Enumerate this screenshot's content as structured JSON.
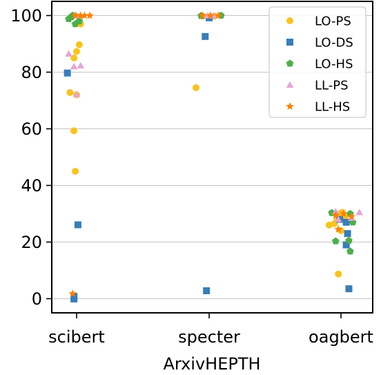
{
  "chart_data": {
    "type": "scatter",
    "title": "",
    "xlabel": "ArxivHEPTH",
    "ylabel": "",
    "categories": [
      "scibert",
      "specter",
      "oagbert"
    ],
    "ylim": [
      -5,
      105
    ],
    "yticks": [
      0,
      20,
      40,
      60,
      80,
      100
    ],
    "grid": "horizontal",
    "legend_position": "top-right",
    "series": [
      {
        "name": "LO-PS",
        "marker": "circle",
        "color": "#f9c31d",
        "points": [
          {
            "cat": 0,
            "jitter": 0.02,
            "y": 99.5
          },
          {
            "cat": 0,
            "jitter": 0.03,
            "y": 97
          },
          {
            "cat": 0,
            "jitter": 0.02,
            "y": 89.7
          },
          {
            "cat": 0,
            "jitter": 0.0,
            "y": 87.3
          },
          {
            "cat": 0,
            "jitter": -0.02,
            "y": 85
          },
          {
            "cat": 0,
            "jitter": -0.05,
            "y": 72.8
          },
          {
            "cat": 0,
            "jitter": 0.0,
            "y": 72
          },
          {
            "cat": 0,
            "jitter": -0.02,
            "y": 59.3
          },
          {
            "cat": 0,
            "jitter": -0.01,
            "y": 45
          },
          {
            "cat": 1,
            "jitter": -0.1,
            "y": 74.5
          },
          {
            "cat": 1,
            "jitter": -0.05,
            "y": 99.8
          },
          {
            "cat": 1,
            "jitter": 0.0,
            "y": 99.5
          },
          {
            "cat": 1,
            "jitter": 0.04,
            "y": 99.8
          },
          {
            "cat": 2,
            "jitter": -0.09,
            "y": 26
          },
          {
            "cat": 2,
            "jitter": -0.05,
            "y": 26.5
          },
          {
            "cat": 2,
            "jitter": -0.01,
            "y": 30
          },
          {
            "cat": 2,
            "jitter": 0.01,
            "y": 30.5
          },
          {
            "cat": 2,
            "jitter": 0.03,
            "y": 29
          },
          {
            "cat": 2,
            "jitter": -0.03,
            "y": 28
          },
          {
            "cat": 2,
            "jitter": 0.0,
            "y": 24
          },
          {
            "cat": 2,
            "jitter": -0.02,
            "y": 8.7
          }
        ]
      },
      {
        "name": "LO-DS",
        "marker": "square",
        "color": "#377eb8",
        "points": [
          {
            "cat": 0,
            "jitter": -0.07,
            "y": 79.7
          },
          {
            "cat": 0,
            "jitter": 0.01,
            "y": 26.1
          },
          {
            "cat": 0,
            "jitter": -0.02,
            "y": 0.8
          },
          {
            "cat": 0,
            "jitter": -0.02,
            "y": -0.1
          },
          {
            "cat": 1,
            "jitter": 0.0,
            "y": 99.2
          },
          {
            "cat": 1,
            "jitter": -0.03,
            "y": 92.6
          },
          {
            "cat": 1,
            "jitter": -0.02,
            "y": 2.8
          },
          {
            "cat": 2,
            "jitter": -0.01,
            "y": 28
          },
          {
            "cat": 2,
            "jitter": 0.04,
            "y": 27
          },
          {
            "cat": 2,
            "jitter": 0.05,
            "y": 23
          },
          {
            "cat": 2,
            "jitter": 0.04,
            "y": 19
          },
          {
            "cat": 2,
            "jitter": 0.06,
            "y": 3.5
          }
        ]
      },
      {
        "name": "LO-HS",
        "marker": "pentagon",
        "color": "#4daf4a",
        "points": [
          {
            "cat": 0,
            "jitter": -0.06,
            "y": 98.8
          },
          {
            "cat": 0,
            "jitter": -0.03,
            "y": 100
          },
          {
            "cat": 0,
            "jitter": -0.01,
            "y": 97
          },
          {
            "cat": 0,
            "jitter": 0.02,
            "y": 98
          },
          {
            "cat": 0,
            "jitter": -0.04,
            "y": 99.5
          },
          {
            "cat": 1,
            "jitter": -0.06,
            "y": 99.9
          },
          {
            "cat": 1,
            "jitter": 0.09,
            "y": 100
          },
          {
            "cat": 2,
            "jitter": -0.07,
            "y": 30.3
          },
          {
            "cat": 2,
            "jitter": 0.07,
            "y": 30
          },
          {
            "cat": 2,
            "jitter": 0.09,
            "y": 27
          },
          {
            "cat": 2,
            "jitter": -0.04,
            "y": 20.3
          },
          {
            "cat": 2,
            "jitter": 0.06,
            "y": 20.5
          },
          {
            "cat": 2,
            "jitter": 0.07,
            "y": 16.7
          }
        ]
      },
      {
        "name": "LL-PS",
        "marker": "triangle",
        "color": "#e7a4d7",
        "points": [
          {
            "cat": 0,
            "jitter": -0.06,
            "y": 86.5
          },
          {
            "cat": 0,
            "jitter": -0.02,
            "y": 82
          },
          {
            "cat": 0,
            "jitter": 0.03,
            "y": 82.3
          },
          {
            "cat": 0,
            "jitter": 0.0,
            "y": 72.2
          },
          {
            "cat": 0,
            "jitter": 0.0,
            "y": 100
          },
          {
            "cat": 1,
            "jitter": -0.01,
            "y": 100
          },
          {
            "cat": 1,
            "jitter": 0.03,
            "y": 100
          },
          {
            "cat": 2,
            "jitter": -0.04,
            "y": 30.8
          },
          {
            "cat": 2,
            "jitter": -0.02,
            "y": 28
          },
          {
            "cat": 2,
            "jitter": 0.08,
            "y": 28.5
          },
          {
            "cat": 2,
            "jitter": 0.14,
            "y": 30.5
          }
        ]
      },
      {
        "name": "LL-HS",
        "marker": "star",
        "color": "#ff7f00",
        "points": [
          {
            "cat": 0,
            "jitter": -0.01,
            "y": 100
          },
          {
            "cat": 0,
            "jitter": 0.03,
            "y": 100
          },
          {
            "cat": 0,
            "jitter": 0.06,
            "y": 100
          },
          {
            "cat": 0,
            "jitter": 0.1,
            "y": 100
          },
          {
            "cat": 0,
            "jitter": -0.03,
            "y": 1.8
          },
          {
            "cat": 1,
            "jitter": -0.05,
            "y": 100
          },
          {
            "cat": 1,
            "jitter": 0.01,
            "y": 100
          },
          {
            "cat": 1,
            "jitter": 0.07,
            "y": 100
          },
          {
            "cat": 2,
            "jitter": -0.04,
            "y": 29.5
          },
          {
            "cat": 2,
            "jitter": 0.02,
            "y": 30
          },
          {
            "cat": 2,
            "jitter": 0.08,
            "y": 29
          },
          {
            "cat": 2,
            "jitter": -0.02,
            "y": 24.5
          }
        ]
      }
    ]
  }
}
